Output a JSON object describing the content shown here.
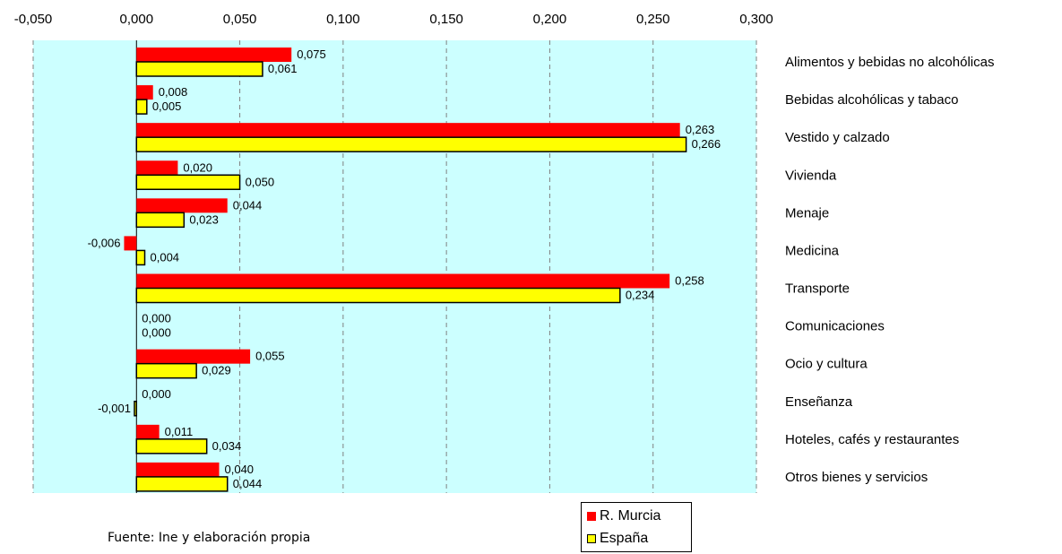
{
  "chart_data": {
    "type": "bar",
    "orientation": "horizontal",
    "categories": [
      "Alimentos y bebidas no alcohólicas",
      "Bebidas alcohólicas y tabaco",
      "Vestido y calzado",
      "Vivienda",
      "Menaje",
      "Medicina",
      "Transporte",
      "Comunicaciones",
      "Ocio y cultura",
      "Enseñanza",
      "Hoteles, cafés y restaurantes",
      "Otros bienes y servicios"
    ],
    "series": [
      {
        "name": "R. Murcia",
        "color": "#ff0000",
        "values": [
          0.075,
          0.008,
          0.263,
          0.02,
          0.044,
          -0.006,
          0.258,
          0.0,
          0.055,
          0.0,
          0.011,
          0.04
        ],
        "labels": [
          "0,075",
          "0,008",
          "0,263",
          "0,020",
          "0,044",
          "-0,006",
          "0,258",
          "0,000",
          "0,055",
          "0,000",
          "0,011",
          "0,040"
        ]
      },
      {
        "name": "España",
        "color": "#ffff00",
        "values": [
          0.061,
          0.005,
          0.266,
          0.05,
          0.023,
          0.004,
          0.234,
          0.0,
          0.029,
          -0.001,
          0.034,
          0.044
        ],
        "labels": [
          "0,061",
          "0,005",
          "0,266",
          "0,050",
          "0,023",
          "0,004",
          "0,234",
          "0,000",
          "0,029",
          "-0,001",
          "0,034",
          "0,044"
        ]
      }
    ],
    "xlim": [
      -0.05,
      0.3
    ],
    "xticks": [
      -0.05,
      0,
      0.05,
      0.1,
      0.15,
      0.2,
      0.25,
      0.3
    ],
    "xtick_labels": [
      "-0,050",
      "0,000",
      "0,050",
      "0,100",
      "0,150",
      "0,200",
      "0,250",
      "0,300"
    ],
    "axis_position": "top",
    "plot_background": "#ccffff",
    "grid": "vertical dashed",
    "legend_position": "bottom-center",
    "title": "",
    "xlabel": "",
    "ylabel": ""
  },
  "source_note": "Fuente: Ine y elaboración propia"
}
